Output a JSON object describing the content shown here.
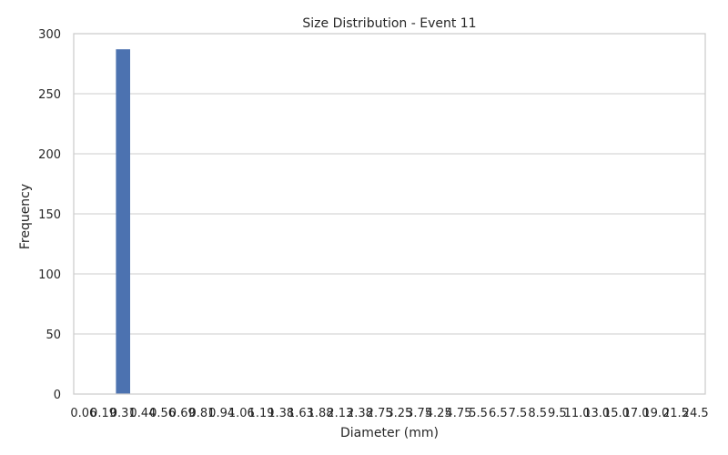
{
  "chart_data": {
    "type": "bar",
    "title": "Size Distribution - Event 11",
    "xlabel": "Diameter (mm)",
    "ylabel": "Frequency",
    "categories": [
      "0.06",
      "0.19",
      "0.31",
      "0.44",
      "0.56",
      "0.69",
      "0.81",
      "0.94",
      "1.06",
      "1.19",
      "1.38",
      "1.63",
      "1.88",
      "2.13",
      "2.38",
      "2.75",
      "3.25",
      "3.75",
      "4.25",
      "4.75",
      "5.5",
      "6.5",
      "7.5",
      "8.5",
      "9.5",
      "11.0",
      "13.0",
      "15.0",
      "17.0",
      "19.0",
      "21.5",
      "24.5"
    ],
    "values": [
      0,
      0,
      287,
      0,
      0,
      0,
      0,
      0,
      0,
      0,
      0,
      0,
      0,
      0,
      0,
      0,
      0,
      0,
      0,
      0,
      0,
      0,
      0,
      0,
      0,
      0,
      0,
      0,
      0,
      0,
      0,
      0
    ],
    "ylim": [
      0,
      300
    ],
    "yticks": [
      0,
      50,
      100,
      150,
      200,
      250,
      300
    ],
    "grid": "horizontal",
    "bar_color": "#4c72b0"
  }
}
